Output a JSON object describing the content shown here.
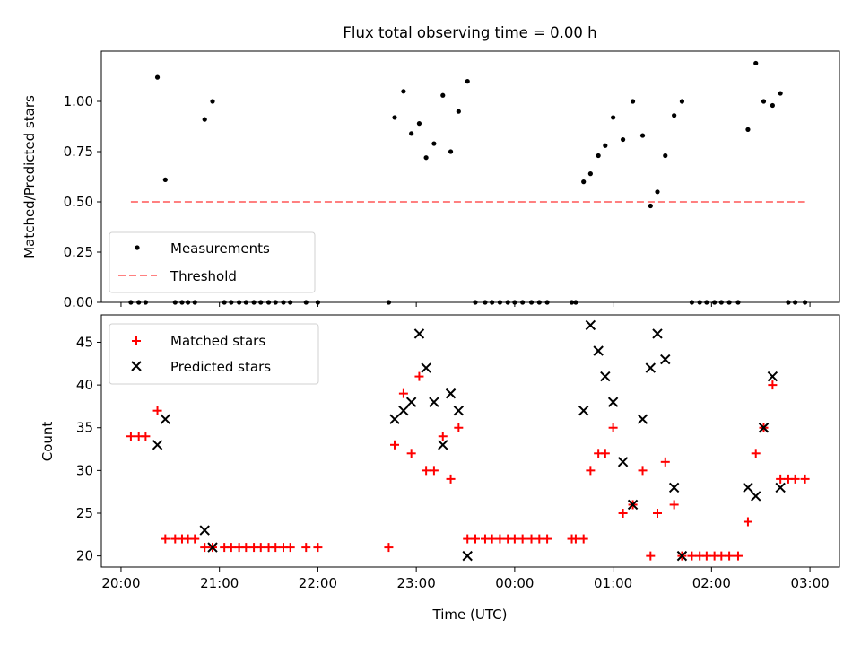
{
  "chart_data": [
    {
      "type": "scatter",
      "title": "Flux total observing time = 0.00 h",
      "xlabel": "",
      "ylabel": "Matched/Predicted stars",
      "x_unit": "hours (UTC clock, continuing past midnight)",
      "xlim": [
        19.8,
        27.3
      ],
      "ylim": [
        0,
        1.25
      ],
      "yticks": [
        "0.00",
        "0.25",
        "0.50",
        "0.75",
        "1.00"
      ],
      "legend": {
        "placement": "lower-left",
        "entries": [
          "Measurements",
          "Threshold"
        ]
      },
      "series": [
        {
          "name": "Measurements",
          "marker": "dot",
          "color": "#000000",
          "points": [
            [
              20.1,
              0
            ],
            [
              20.18,
              0
            ],
            [
              20.25,
              0
            ],
            [
              20.37,
              1.12
            ],
            [
              20.45,
              0.61
            ],
            [
              20.55,
              0
            ],
            [
              20.62,
              0
            ],
            [
              20.68,
              0
            ],
            [
              20.75,
              0
            ],
            [
              20.85,
              0.91
            ],
            [
              20.93,
              1.0
            ],
            [
              21.05,
              0
            ],
            [
              21.12,
              0
            ],
            [
              21.2,
              0
            ],
            [
              21.27,
              0
            ],
            [
              21.35,
              0
            ],
            [
              21.42,
              0
            ],
            [
              21.5,
              0
            ],
            [
              21.57,
              0
            ],
            [
              21.65,
              0
            ],
            [
              21.72,
              0
            ],
            [
              21.88,
              0
            ],
            [
              22.0,
              0
            ],
            [
              22.72,
              0
            ],
            [
              22.78,
              0.92
            ],
            [
              22.87,
              1.05
            ],
            [
              22.95,
              0.84
            ],
            [
              23.03,
              0.89
            ],
            [
              23.1,
              0.72
            ],
            [
              23.18,
              0.79
            ],
            [
              23.27,
              1.03
            ],
            [
              23.35,
              0.75
            ],
            [
              23.43,
              0.95
            ],
            [
              23.52,
              1.1
            ],
            [
              23.6,
              0
            ],
            [
              23.7,
              0
            ],
            [
              23.77,
              0
            ],
            [
              23.85,
              0
            ],
            [
              23.93,
              0
            ],
            [
              24.0,
              0
            ],
            [
              24.08,
              0
            ],
            [
              24.17,
              0
            ],
            [
              24.25,
              0
            ],
            [
              24.33,
              0
            ],
            [
              24.58,
              0
            ],
            [
              24.62,
              0
            ],
            [
              24.7,
              0.6
            ],
            [
              24.77,
              0.64
            ],
            [
              24.85,
              0.73
            ],
            [
              24.92,
              0.78
            ],
            [
              25.0,
              0.92
            ],
            [
              25.1,
              0.81
            ],
            [
              25.2,
              1.0
            ],
            [
              25.3,
              0.83
            ],
            [
              25.38,
              0.48
            ],
            [
              25.45,
              0.55
            ],
            [
              25.53,
              0.73
            ],
            [
              25.62,
              0.93
            ],
            [
              25.7,
              1.0
            ],
            [
              25.8,
              0
            ],
            [
              25.88,
              0
            ],
            [
              25.95,
              0
            ],
            [
              26.03,
              0
            ],
            [
              26.1,
              0
            ],
            [
              26.18,
              0
            ],
            [
              26.27,
              0
            ],
            [
              26.37,
              0.86
            ],
            [
              26.45,
              1.19
            ],
            [
              26.53,
              1.0
            ],
            [
              26.62,
              0.98
            ],
            [
              26.7,
              1.04
            ],
            [
              26.78,
              0
            ],
            [
              26.85,
              0
            ],
            [
              26.95,
              0
            ]
          ]
        },
        {
          "name": "Threshold",
          "style": "dashed",
          "color": "#ff8080",
          "points": [
            [
              20.1,
              0.5
            ],
            [
              26.95,
              0.5
            ]
          ]
        }
      ]
    },
    {
      "type": "scatter",
      "title": "",
      "xlabel": "Time (UTC)",
      "ylabel": "Count",
      "x_unit": "hours (UTC clock, continuing past midnight)",
      "xlim": [
        19.8,
        27.3
      ],
      "ylim": [
        18.7,
        48.2
      ],
      "yticks": [
        "20",
        "25",
        "30",
        "35",
        "40",
        "45"
      ],
      "xticks": [
        "20:00",
        "21:00",
        "22:00",
        "23:00",
        "00:00",
        "01:00",
        "02:00",
        "03:00"
      ],
      "legend": {
        "placement": "upper-left",
        "entries": [
          "Matched stars",
          "Predicted stars"
        ]
      },
      "series": [
        {
          "name": "Matched stars",
          "marker": "plus",
          "color": "#ff0000",
          "points": [
            [
              20.1,
              34
            ],
            [
              20.18,
              34
            ],
            [
              20.25,
              34
            ],
            [
              20.37,
              37
            ],
            [
              20.45,
              22
            ],
            [
              20.55,
              22
            ],
            [
              20.62,
              22
            ],
            [
              20.68,
              22
            ],
            [
              20.75,
              22
            ],
            [
              20.85,
              21
            ],
            [
              20.93,
              21
            ],
            [
              21.05,
              21
            ],
            [
              21.12,
              21
            ],
            [
              21.2,
              21
            ],
            [
              21.27,
              21
            ],
            [
              21.35,
              21
            ],
            [
              21.42,
              21
            ],
            [
              21.5,
              21
            ],
            [
              21.57,
              21
            ],
            [
              21.65,
              21
            ],
            [
              21.72,
              21
            ],
            [
              21.88,
              21
            ],
            [
              22.0,
              21
            ],
            [
              22.72,
              21
            ],
            [
              22.78,
              33
            ],
            [
              22.87,
              39
            ],
            [
              22.95,
              32
            ],
            [
              23.03,
              41
            ],
            [
              23.1,
              30
            ],
            [
              23.18,
              30
            ],
            [
              23.27,
              34
            ],
            [
              23.35,
              29
            ],
            [
              23.43,
              35
            ],
            [
              23.52,
              22
            ],
            [
              23.6,
              22
            ],
            [
              23.7,
              22
            ],
            [
              23.77,
              22
            ],
            [
              23.85,
              22
            ],
            [
              23.93,
              22
            ],
            [
              24.0,
              22
            ],
            [
              24.08,
              22
            ],
            [
              24.17,
              22
            ],
            [
              24.25,
              22
            ],
            [
              24.33,
              22
            ],
            [
              24.58,
              22
            ],
            [
              24.62,
              22
            ],
            [
              24.7,
              22
            ],
            [
              24.77,
              30
            ],
            [
              24.85,
              32
            ],
            [
              24.92,
              32
            ],
            [
              25.0,
              35
            ],
            [
              25.1,
              25
            ],
            [
              25.2,
              26
            ],
            [
              25.3,
              30
            ],
            [
              25.38,
              20
            ],
            [
              25.45,
              25
            ],
            [
              25.53,
              31
            ],
            [
              25.62,
              26
            ],
            [
              25.7,
              20
            ],
            [
              25.8,
              20
            ],
            [
              25.88,
              20
            ],
            [
              25.95,
              20
            ],
            [
              26.03,
              20
            ],
            [
              26.1,
              20
            ],
            [
              26.18,
              20
            ],
            [
              26.27,
              20
            ],
            [
              26.37,
              24
            ],
            [
              26.45,
              32
            ],
            [
              26.53,
              35
            ],
            [
              26.62,
              40
            ],
            [
              26.7,
              29
            ],
            [
              26.78,
              29
            ],
            [
              26.85,
              29
            ],
            [
              26.95,
              29
            ]
          ]
        },
        {
          "name": "Predicted stars",
          "marker": "x",
          "color": "#000000",
          "points": [
            [
              20.37,
              33
            ],
            [
              20.45,
              36
            ],
            [
              20.85,
              23
            ],
            [
              20.93,
              21
            ],
            [
              22.78,
              36
            ],
            [
              22.87,
              37
            ],
            [
              22.95,
              38
            ],
            [
              23.03,
              46
            ],
            [
              23.1,
              42
            ],
            [
              23.18,
              38
            ],
            [
              23.27,
              33
            ],
            [
              23.35,
              39
            ],
            [
              23.43,
              37
            ],
            [
              23.52,
              20
            ],
            [
              24.7,
              37
            ],
            [
              24.77,
              47
            ],
            [
              24.85,
              44
            ],
            [
              24.92,
              41
            ],
            [
              25.0,
              38
            ],
            [
              25.1,
              31
            ],
            [
              25.2,
              26
            ],
            [
              25.3,
              36
            ],
            [
              25.38,
              42
            ],
            [
              25.45,
              46
            ],
            [
              25.53,
              43
            ],
            [
              25.62,
              28
            ],
            [
              25.7,
              20
            ],
            [
              26.37,
              28
            ],
            [
              26.45,
              27
            ],
            [
              26.53,
              35
            ],
            [
              26.62,
              41
            ],
            [
              26.7,
              28
            ]
          ]
        }
      ]
    }
  ]
}
